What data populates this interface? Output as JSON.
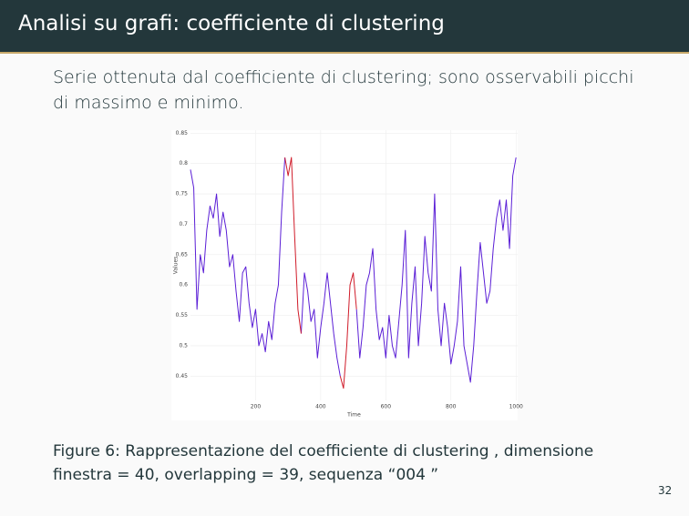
{
  "header": {
    "title": "Analisi su grafi: coefficiente di clustering"
  },
  "body": {
    "text": "Serie ottenuta dal coefficiente di clustering; sono osservabili picchi di massimo e minimo."
  },
  "caption": {
    "label": "Figure 6:",
    "text": "Rappresentazione del coefficiente di clustering , dimensione finestra = 40, overlapping = 39, sequenza “004 ”"
  },
  "page_number": "32",
  "chart_data": {
    "type": "line",
    "x_label": "Time",
    "y_label": "Values",
    "x": [
      0,
      10,
      20,
      30,
      40,
      50,
      60,
      70,
      80,
      90,
      100,
      110,
      120,
      130,
      140,
      150,
      160,
      170,
      180,
      190,
      200,
      210,
      220,
      230,
      240,
      250,
      260,
      270,
      280,
      290,
      300,
      310,
      320,
      330,
      340,
      350,
      360,
      370,
      380,
      390,
      400,
      410,
      420,
      430,
      440,
      450,
      460,
      470,
      480,
      490,
      500,
      510,
      520,
      530,
      540,
      550,
      560,
      570,
      580,
      590,
      600,
      610,
      620,
      630,
      640,
      650,
      660,
      670,
      680,
      690,
      700,
      710,
      720,
      730,
      740,
      750,
      760,
      770,
      780,
      790,
      800,
      810,
      820,
      830,
      840,
      850,
      860,
      870,
      880,
      890,
      900,
      910,
      920,
      930,
      940,
      950,
      960,
      970,
      980,
      990,
      1000
    ],
    "series": [
      {
        "color": "#5b1fd6",
        "values": [
          0.79,
          0.76,
          0.56,
          0.65,
          0.62,
          0.69,
          0.73,
          0.71,
          0.75,
          0.68,
          0.72,
          0.69,
          0.63,
          0.65,
          0.59,
          0.54,
          0.62,
          0.63,
          0.57,
          0.53,
          0.56,
          0.5,
          0.52,
          0.49,
          0.54,
          0.51,
          0.57,
          0.6,
          0.72,
          0.81,
          null,
          null,
          null,
          null,
          0.52,
          0.62,
          0.59,
          0.54,
          0.56,
          0.48,
          0.53,
          0.57,
          0.62,
          0.57,
          0.52,
          0.48,
          0.45,
          null,
          null,
          null,
          null,
          0.56,
          0.48,
          0.53,
          0.6,
          0.62,
          0.66,
          0.56,
          0.51,
          0.53,
          0.48,
          0.55,
          0.5,
          0.48,
          0.54,
          0.6,
          0.69,
          0.48,
          0.57,
          0.63,
          0.5,
          0.57,
          0.68,
          0.62,
          0.59,
          0.75,
          0.56,
          0.5,
          0.57,
          0.53,
          0.47,
          0.5,
          0.54,
          0.63,
          0.5,
          0.47,
          0.44,
          0.5,
          0.59,
          0.67,
          0.62,
          0.57,
          0.59,
          0.66,
          0.71,
          0.74,
          0.69,
          0.74,
          0.66,
          0.78,
          0.81
        ]
      },
      {
        "color": "#d01c2a",
        "values": [
          null,
          null,
          null,
          null,
          null,
          null,
          null,
          null,
          null,
          null,
          null,
          null,
          null,
          null,
          null,
          null,
          null,
          null,
          null,
          null,
          null,
          null,
          null,
          null,
          null,
          null,
          null,
          null,
          null,
          0.81,
          0.78,
          0.81,
          0.68,
          0.56,
          0.52,
          null,
          null,
          null,
          null,
          null,
          null,
          null,
          null,
          null,
          null,
          null,
          0.45,
          0.43,
          0.5,
          0.6,
          0.62,
          0.56,
          null,
          null,
          null,
          null,
          null,
          null,
          null,
          null,
          null,
          null,
          null,
          null,
          null,
          null,
          null,
          null,
          null,
          null,
          null,
          null,
          null,
          null,
          null,
          null,
          null,
          null,
          null,
          null,
          null,
          null,
          null,
          null,
          null,
          null,
          null,
          null,
          null,
          null,
          null,
          null,
          null,
          null,
          null,
          null,
          null,
          null,
          null,
          null,
          null
        ]
      }
    ],
    "xlim": [
      0,
      1005
    ],
    "ylim": [
      0.41,
      0.855
    ],
    "xticks": [
      200,
      400,
      600,
      800,
      1000
    ],
    "yticks": [
      0.45,
      0.5,
      0.55,
      0.6,
      0.65,
      0.7,
      0.75,
      0.8,
      0.85
    ],
    "grid": true
  }
}
